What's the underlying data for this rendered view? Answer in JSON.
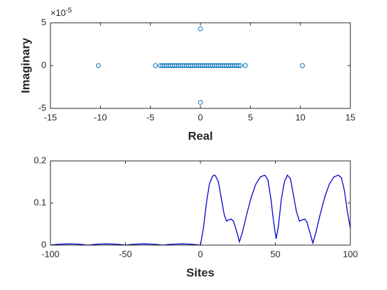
{
  "chart_data": [
    {
      "type": "scatter",
      "xlabel": "Real",
      "ylabel": "Imaginary",
      "exponent_label": {
        "base": "×10",
        "power": "-5"
      },
      "color": "#0072bd",
      "x": [
        -10.2,
        -4.5,
        4.5,
        10.2,
        0,
        0,
        -4.0,
        -3.8,
        -3.6,
        -3.4,
        -3.2,
        -3.0,
        -2.8,
        -2.6,
        -2.4,
        -2.2,
        -2.0,
        -1.8,
        -1.6,
        -1.4,
        -1.2,
        -1.0,
        -0.8,
        -0.6,
        -0.4,
        -0.2,
        0.0,
        0.2,
        0.4,
        0.6,
        0.8,
        1.0,
        1.2,
        1.4,
        1.6,
        1.8,
        2.0,
        2.2,
        2.4,
        2.6,
        2.8,
        3.0,
        3.2,
        3.4,
        3.6,
        3.8,
        4.0
      ],
      "values": [
        0,
        0,
        0,
        0,
        4.3,
        -4.3,
        0,
        0,
        0,
        0,
        0,
        0,
        0,
        0,
        0,
        0,
        0,
        0,
        0,
        0,
        0,
        0,
        0,
        0,
        0,
        0,
        0,
        0,
        0,
        0,
        0,
        0,
        0,
        0,
        0,
        0,
        0,
        0,
        0,
        0,
        0,
        0,
        0,
        0,
        0,
        0,
        0
      ],
      "xlim": [
        -15,
        15
      ],
      "xticks": [
        -15,
        -10,
        -5,
        0,
        5,
        10,
        15
      ],
      "ylim": [
        -5,
        5
      ],
      "yticks": [
        -5,
        0,
        5
      ]
    },
    {
      "type": "line",
      "xlabel": "Sites",
      "color": "#0000cd",
      "x": [
        -100,
        -95,
        -87.5,
        -80,
        -75,
        -70,
        -62.5,
        -55,
        -50,
        -45,
        -37.5,
        -30,
        -25,
        -20,
        -12.5,
        -5,
        0,
        2,
        4,
        6,
        8,
        9,
        10,
        12,
        14,
        16,
        17.5,
        19,
        20.5,
        22,
        24,
        26,
        28,
        31,
        34,
        37,
        40,
        43,
        45,
        47,
        49,
        50.5,
        52,
        54,
        56,
        58,
        60,
        62,
        64,
        66,
        68,
        69.5,
        71,
        73,
        75,
        77,
        80,
        83,
        86,
        89,
        92,
        94,
        96,
        98,
        100
      ],
      "values": [
        0,
        0.002,
        0.003,
        0.002,
        0,
        0.002,
        0.003,
        0.002,
        0,
        0.002,
        0.003,
        0.002,
        0,
        0.002,
        0.003,
        0.002,
        0,
        0.04,
        0.1,
        0.145,
        0.163,
        0.166,
        0.165,
        0.15,
        0.11,
        0.07,
        0.057,
        0.06,
        0.062,
        0.057,
        0.035,
        0.008,
        0.03,
        0.075,
        0.115,
        0.145,
        0.162,
        0.166,
        0.155,
        0.11,
        0.05,
        0.015,
        0.045,
        0.11,
        0.15,
        0.166,
        0.158,
        0.12,
        0.08,
        0.057,
        0.06,
        0.062,
        0.055,
        0.03,
        0.005,
        0.03,
        0.075,
        0.115,
        0.145,
        0.162,
        0.166,
        0.16,
        0.13,
        0.08,
        0.04
      ],
      "xlim": [
        -100,
        100
      ],
      "xticks": [
        -100,
        -50,
        0,
        50,
        100
      ],
      "ylim": [
        0,
        0.2
      ],
      "yticks": [
        0,
        0.1,
        0.2
      ]
    }
  ]
}
